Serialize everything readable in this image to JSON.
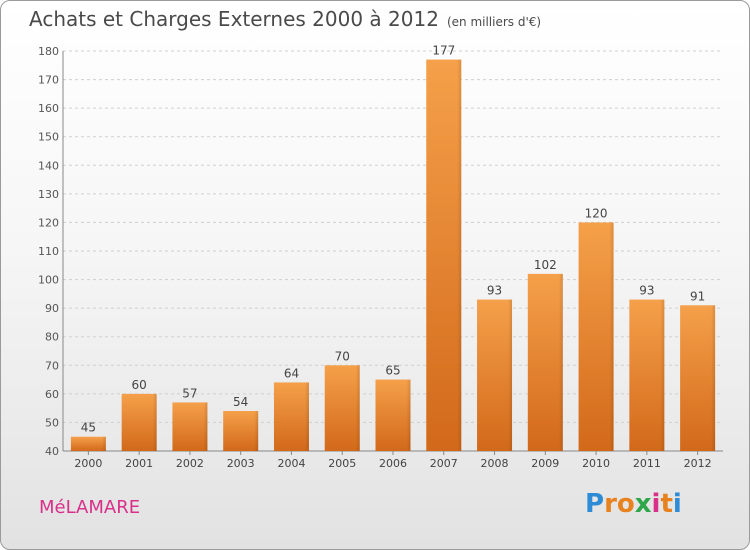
{
  "header": {
    "title": "Achats et Charges Externes 2000 à 2012",
    "unit": "(en milliers d'€)"
  },
  "footer": {
    "commune": "MéLAMARE",
    "logo": [
      "P",
      "r",
      "o",
      "x",
      "i",
      "t",
      "i"
    ],
    "logo_colors": [
      "#2e8bd6",
      "#e8821e",
      "#e8821e",
      "#2ea64a",
      "#d9308a",
      "#e8821e",
      "#2e8bd6"
    ]
  },
  "chart_data": {
    "type": "bar",
    "categories": [
      "2000",
      "2001",
      "2002",
      "2003",
      "2004",
      "2005",
      "2006",
      "2007",
      "2008",
      "2009",
      "2010",
      "2011",
      "2012"
    ],
    "values": [
      45,
      60,
      57,
      54,
      64,
      70,
      65,
      177,
      93,
      102,
      120,
      93,
      91
    ],
    "ylim": [
      40,
      180
    ],
    "yticks": [
      40,
      50,
      60,
      70,
      80,
      90,
      100,
      110,
      120,
      130,
      140,
      150,
      160,
      170,
      180
    ],
    "grid": true,
    "bar_color": "#e8841e"
  }
}
